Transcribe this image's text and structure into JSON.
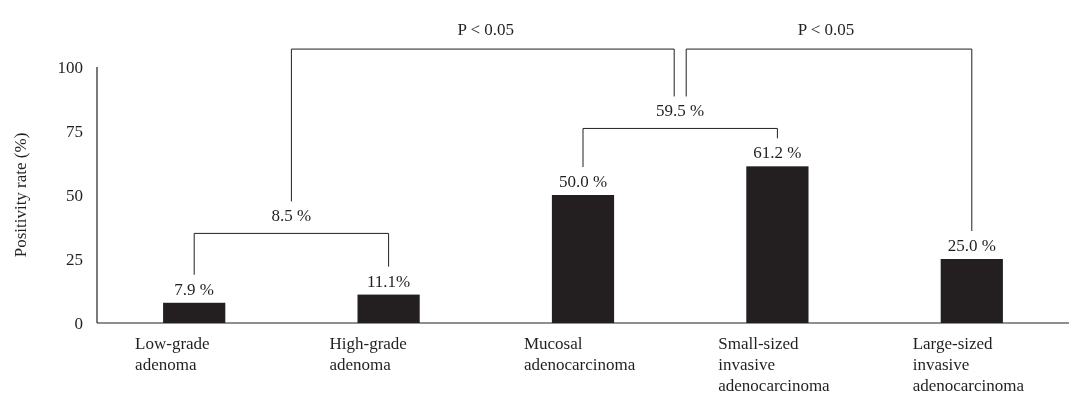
{
  "chart_data": {
    "type": "bar",
    "ylabel": "Positivity rate (%)",
    "categories": [
      "Low-grade adenoma",
      "High-grade adenoma",
      "Mucosal adenocarcinoma",
      "Small-sized invasive adenocarcinoma",
      "Large-sized invasive adenocarcinoma"
    ],
    "values": [
      7.9,
      11.1,
      50.0,
      61.2,
      25.0
    ],
    "value_labels": [
      "7.9 %",
      "11.1%",
      "50.0 %",
      "61.2 %",
      "25.0 %"
    ],
    "color": "#231f20",
    "ylim": [
      0,
      100
    ],
    "yticks": [
      0,
      25,
      50,
      75,
      100
    ],
    "grid": false,
    "annotations": [
      "8.5 %",
      "59.5 %",
      "P < 0.05",
      "P < 0.05"
    ]
  }
}
